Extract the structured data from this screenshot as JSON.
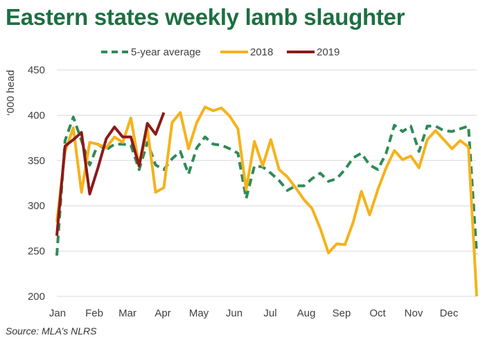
{
  "title": "Eastern states weekly lamb slaughter",
  "source": "Source: MLA’s NLRS",
  "chart_data": {
    "type": "line",
    "title": "Eastern states weekly lamb slaughter",
    "xlabel": "",
    "ylabel": "‘000 head",
    "ylim": [
      200,
      450
    ],
    "yticks": [
      200,
      250,
      300,
      350,
      400,
      450
    ],
    "xlim": [
      1,
      52
    ],
    "month_labels": [
      "Jan",
      "Feb",
      "Mar",
      "Apr",
      "May",
      "Jun",
      "Jul",
      "Aug",
      "Sep",
      "Oct",
      "Nov",
      "Dec"
    ],
    "legend_position": "top",
    "grid": "horizontal",
    "series": [
      {
        "name": "5-year average",
        "color": "#2e8b57",
        "style": "dashed",
        "x": [
          1,
          2,
          3,
          4,
          5,
          6,
          7,
          8,
          9,
          10,
          11,
          12,
          13,
          14,
          15,
          16,
          17,
          18,
          19,
          20,
          21,
          22,
          23,
          24,
          25,
          26,
          27,
          28,
          29,
          30,
          31,
          32,
          33,
          34,
          35,
          36,
          37,
          38,
          39,
          40,
          41,
          42,
          43,
          44,
          45,
          46,
          47,
          48,
          49,
          50,
          51,
          52
        ],
        "values": [
          245,
          372,
          398,
          372,
          345,
          368,
          362,
          368,
          368,
          367,
          340,
          370,
          345,
          340,
          352,
          360,
          335,
          364,
          376,
          368,
          367,
          363,
          358,
          308,
          344,
          343,
          336,
          328,
          317,
          322,
          322,
          330,
          336,
          327,
          330,
          340,
          353,
          358,
          345,
          340,
          358,
          389,
          382,
          388,
          360,
          388,
          388,
          383,
          382,
          385,
          388,
          247
        ]
      },
      {
        "name": "2018",
        "color": "#f5b21b",
        "style": "solid",
        "x": [
          1,
          2,
          3,
          4,
          5,
          6,
          7,
          8,
          9,
          10,
          11,
          12,
          13,
          14,
          15,
          16,
          17,
          18,
          19,
          20,
          21,
          22,
          23,
          24,
          25,
          26,
          27,
          28,
          29,
          30,
          31,
          32,
          33,
          34,
          35,
          36,
          37,
          38,
          39,
          40,
          41,
          42,
          43,
          44,
          45,
          46,
          47,
          48,
          49,
          50,
          51,
          52
        ],
        "values": [
          282,
          360,
          386,
          315,
          370,
          368,
          364,
          376,
          370,
          397,
          344,
          385,
          315,
          320,
          392,
          403,
          363,
          392,
          409,
          405,
          408,
          399,
          385,
          318,
          371,
          344,
          373,
          340,
          332,
          320,
          307,
          297,
          275,
          248,
          258,
          257,
          282,
          316,
          290,
          318,
          342,
          361,
          351,
          355,
          342,
          373,
          383,
          373,
          363,
          372,
          365,
          200
        ]
      },
      {
        "name": "2019",
        "color": "#8b1a1a",
        "style": "solid",
        "x": [
          1,
          2,
          3,
          4,
          5,
          6,
          7,
          8,
          9,
          10,
          11,
          12,
          13,
          14,
          15
        ],
        "values": [
          267,
          366,
          373,
          381,
          313,
          342,
          374,
          387,
          376,
          376,
          344,
          391,
          379,
          403,
          null
        ]
      }
    ]
  }
}
